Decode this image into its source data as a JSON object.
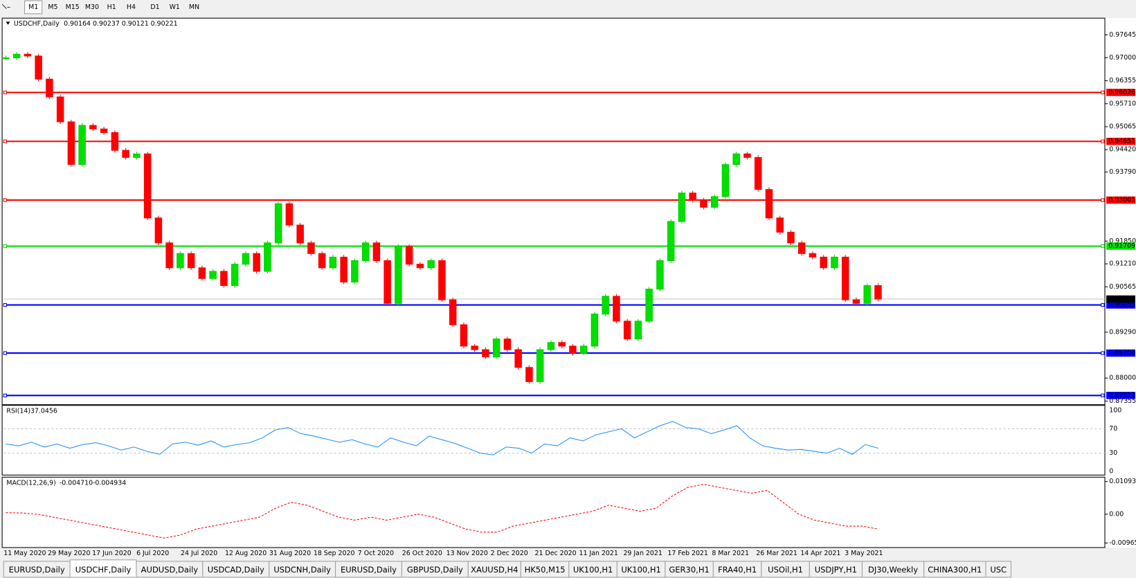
{
  "toolbar": [
    "M1",
    "M5",
    "M15",
    "M30",
    "H1",
    "H4",
    "D1",
    "W1",
    "MN"
  ],
  "header": {
    "symbol": "USDCHF,Daily",
    "ohlc": [
      "0.90164",
      "0.90237",
      "0.90121",
      "0.90221"
    ]
  },
  "price_axis": [
    {
      "value": 0.97645,
      "label": "0.97645"
    },
    {
      "value": 0.97,
      "label": "0.97000"
    },
    {
      "value": 0.96355,
      "label": "0.96355"
    },
    {
      "value": 0.9571,
      "label": "0.95710"
    },
    {
      "value": 0.95065,
      "label": "0.95065"
    },
    {
      "value": 0.9442,
      "label": "0.94420"
    },
    {
      "value": 0.9379,
      "label": "0.93790"
    },
    {
      "value": 0.9185,
      "label": "0.91850"
    },
    {
      "value": 0.9121,
      "label": "0.91210"
    },
    {
      "value": 0.90565,
      "label": "0.90565"
    },
    {
      "value": 0.8929,
      "label": "0.89290"
    },
    {
      "value": 0.88,
      "label": "0.88000"
    },
    {
      "value": 0.87355,
      "label": "0.87355"
    }
  ],
  "levels": [
    {
      "value": 0.96026,
      "label": "0.96026",
      "color": "#ff0000"
    },
    {
      "value": 0.94651,
      "label": "0.94651",
      "color": "#ff0000"
    },
    {
      "value": 0.93001,
      "label": "0.93001",
      "color": "#ff0000"
    },
    {
      "value": 0.91709,
      "label": "0.91709",
      "color": "#00e000"
    },
    {
      "value": 0.90055,
      "label": "0.90055",
      "color": "#0000ff"
    },
    {
      "value": 0.88703,
      "label": "0.88703",
      "color": "#0000ff"
    },
    {
      "value": 0.87513,
      "label": "0.87513",
      "color": "#0000ff"
    }
  ],
  "current": {
    "value": 0.90221,
    "label": "0.90221"
  },
  "closes": [
    0.97,
    0.971,
    0.9705,
    0.964,
    0.959,
    0.952,
    0.94,
    0.951,
    0.95,
    0.949,
    0.944,
    0.942,
    0.943,
    0.925,
    0.918,
    0.911,
    0.915,
    0.911,
    0.908,
    0.91,
    0.906,
    0.912,
    0.915,
    0.91,
    0.918,
    0.929,
    0.923,
    0.918,
    0.915,
    0.911,
    0.914,
    0.907,
    0.913,
    0.918,
    0.913,
    0.901,
    0.917,
    0.912,
    0.911,
    0.913,
    0.902,
    0.895,
    0.889,
    0.888,
    0.886,
    0.891,
    0.888,
    0.883,
    0.879,
    0.888,
    0.89,
    0.889,
    0.887,
    0.889,
    0.898,
    0.903,
    0.896,
    0.891,
    0.896,
    0.905,
    0.913,
    0.924,
    0.932,
    0.93,
    0.928,
    0.931,
    0.94,
    0.943,
    0.942,
    0.933,
    0.925,
    0.921,
    0.918,
    0.915,
    0.914,
    0.911,
    0.914,
    0.902,
    0.901,
    0.906,
    0.9022
  ],
  "rsi": {
    "label": "RSI(14)",
    "value": "37.0456",
    "ticks": [
      {
        "value": 100,
        "label": "100"
      },
      {
        "value": 70,
        "label": "70"
      },
      {
        "value": 30,
        "label": "30"
      },
      {
        "value": 0,
        "label": "0"
      }
    ],
    "values": [
      45,
      42,
      48,
      40,
      45,
      38,
      44,
      47,
      42,
      35,
      40,
      33,
      28,
      45,
      48,
      43,
      50,
      40,
      44,
      47,
      55,
      68,
      72,
      62,
      58,
      53,
      48,
      52,
      45,
      40,
      55,
      48,
      42,
      58,
      52,
      46,
      38,
      30,
      27,
      40,
      38,
      30,
      45,
      42,
      55,
      50,
      60,
      65,
      70,
      55,
      65,
      75,
      82,
      72,
      70,
      62,
      68,
      75,
      55,
      42,
      38,
      35,
      36,
      33,
      30,
      38,
      28,
      44,
      38
    ]
  },
  "macd": {
    "label": "MACD(12,26,9)",
    "values_text": [
      "-0.004710",
      "-0.004934"
    ],
    "ticks": [
      {
        "value": 0.010933,
        "label": "0.010933"
      },
      {
        "value": 0,
        "label": "0.00"
      },
      {
        "value": -0.009653,
        "label": "-0.009653"
      }
    ],
    "signal": [
      0.0005,
      0.0004,
      0,
      -0.001,
      -0.002,
      -0.003,
      -0.004,
      -0.005,
      -0.006,
      -0.007,
      -0.008,
      -0.007,
      -0.005,
      -0.004,
      -0.003,
      -0.002,
      -0.001,
      0.002,
      0.004,
      0.003,
      0.001,
      -0.001,
      -0.002,
      -0.001,
      -0.002,
      -0.001,
      0,
      -0.001,
      -0.003,
      -0.005,
      -0.006,
      -0.006,
      -0.004,
      -0.003,
      -0.002,
      -0.001,
      0,
      0.001,
      0.003,
      0.002,
      0.001,
      0.002,
      0.006,
      0.009,
      0.01,
      0.009,
      0.008,
      0.007,
      0.008,
      0.004,
      0,
      -0.002,
      -0.003,
      -0.004,
      -0.004,
      -0.005
    ]
  },
  "dates": [
    "11 May 2020",
    "29 May 2020",
    "17 Jun 2020",
    "6 Jul 2020",
    "24 Jul 2020",
    "12 Aug 2020",
    "31 Aug 2020",
    "18 Sep 2020",
    "7 Oct 2020",
    "26 Oct 2020",
    "13 Nov 2020",
    "2 Dec 2020",
    "21 Dec 2020",
    "11 Jan 2021",
    "29 Jan 2021",
    "17 Feb 2021",
    "8 Mar 2021",
    "26 Mar 2021",
    "14 Apr 2021",
    "3 May 2021"
  ],
  "tabs": [
    "EURUSD,Daily",
    "USDCHF,Daily",
    "AUDUSD,Daily",
    "USDCAD,Daily",
    "USDCNH,Daily",
    "EURUSD,Daily",
    "GBPUSD,Daily",
    "XAUUSD,H4",
    "HK50,M15",
    "UK100,H1",
    "UK100,H1",
    "GER30,H1",
    "FRA40,H1",
    "USOil,H1",
    "USDJPY,H1",
    "DJ30,Weekly",
    "CHINA300,H1",
    "USC"
  ],
  "active_tab": 1
}
